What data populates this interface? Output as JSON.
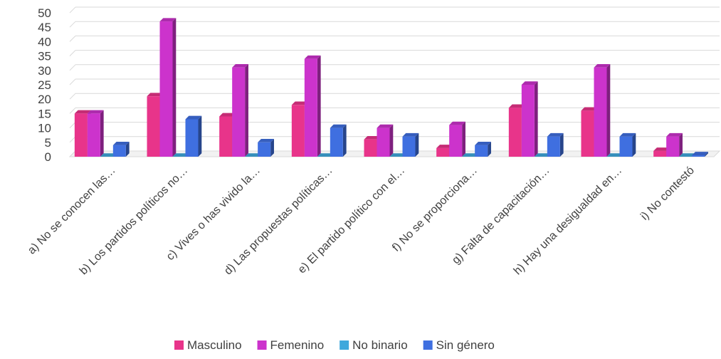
{
  "chart_data": {
    "type": "bar",
    "title": "",
    "xlabel": "",
    "ylabel": "",
    "ylim": [
      0,
      50
    ],
    "yticks": [
      0,
      5,
      10,
      15,
      20,
      25,
      30,
      35,
      40,
      45,
      50
    ],
    "grid": true,
    "legend_position": "bottom",
    "categories": [
      "a) No se conocen las…",
      "b) Los partidos políticos no…",
      "c) Vives o has vivido la…",
      "d) Las propuestas políticas…",
      "e) El partido político con el…",
      "f) No se proporciona…",
      "g) Falta de capacitación…",
      "h) Hay una desigualdad en…",
      "i) No contestó"
    ],
    "series": [
      {
        "name": "Masculino",
        "color": "#e8348a",
        "values": [
          15,
          21,
          14,
          18,
          6,
          3,
          17,
          16,
          2
        ]
      },
      {
        "name": "Femenino",
        "color": "#cc33cc",
        "values": [
          15,
          47,
          31,
          34,
          10,
          11,
          25,
          31,
          7
        ]
      },
      {
        "name": "No binario",
        "color": "#3ea8dc",
        "values": [
          0,
          0,
          0,
          0,
          0,
          0,
          0,
          0,
          0
        ]
      },
      {
        "name": "Sin género",
        "color": "#3f6fe0",
        "values": [
          4,
          13,
          5,
          10,
          7,
          4,
          7,
          7,
          0.5
        ]
      }
    ]
  }
}
